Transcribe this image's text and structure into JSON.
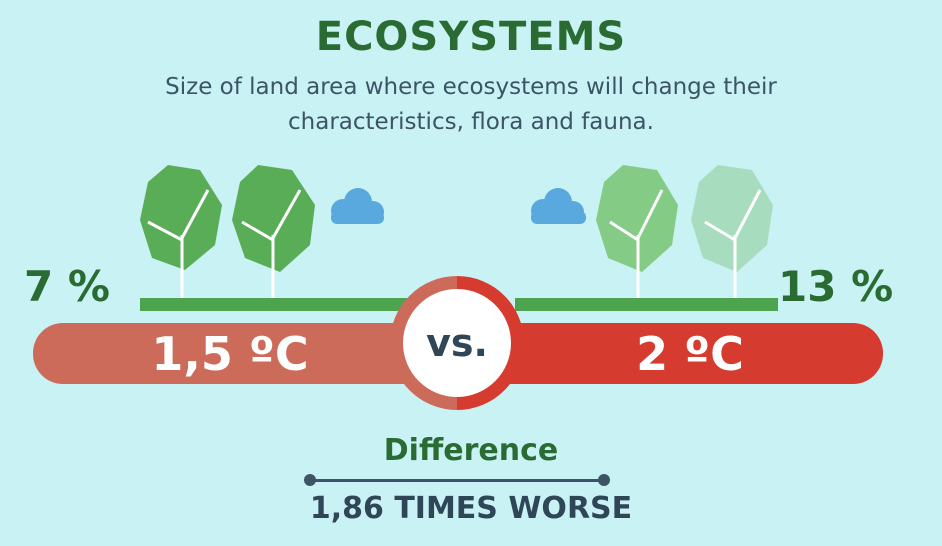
{
  "header": {
    "title": "ECOSYSTEMS",
    "subtitle": "Size of land area where ecosystems will change their characteristics, flora and fauna."
  },
  "comparison": {
    "left": {
      "percent": "7 %",
      "temperature": "1,5 ºC"
    },
    "right": {
      "percent": "13 %",
      "temperature": "2 ºC"
    },
    "vs_label": "vs."
  },
  "difference": {
    "label": "Difference",
    "value": "1,86 TIMES WORSE"
  },
  "icons": [
    "tree-icon",
    "cloud-icon"
  ],
  "colors": {
    "background": "#c8f2f3",
    "title_green": "#2a6b33",
    "bar_left": "#cd6b5b",
    "bar_right": "#d63b2f",
    "ground_green": "#4ea34f",
    "cloud_blue": "#5aa9de"
  }
}
